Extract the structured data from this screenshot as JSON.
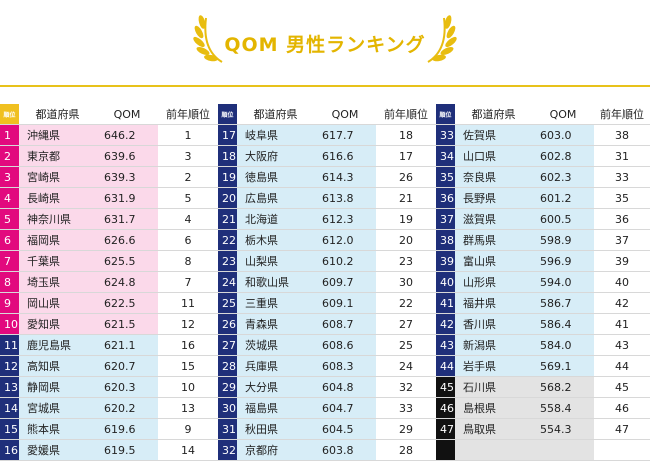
{
  "header": {
    "title": "QOM 男性ランキング"
  },
  "table": {
    "columns": {
      "rank": "順位",
      "pref": "都道府県",
      "qom": "QOM",
      "prev": "前年順位"
    }
  },
  "chart_data": {
    "type": "table",
    "columns": [
      "順位",
      "都道府県",
      "QOM",
      "前年順位"
    ],
    "rows": [
      {
        "rank": "1",
        "pref": "沖縄県",
        "qom": "646.2",
        "prev": "1",
        "group": "pink"
      },
      {
        "rank": "2",
        "pref": "東京都",
        "qom": "639.6",
        "prev": "3",
        "group": "pink"
      },
      {
        "rank": "3",
        "pref": "宮崎県",
        "qom": "639.3",
        "prev": "2",
        "group": "pink"
      },
      {
        "rank": "4",
        "pref": "長崎県",
        "qom": "631.9",
        "prev": "5",
        "group": "pink"
      },
      {
        "rank": "5",
        "pref": "神奈川県",
        "qom": "631.7",
        "prev": "4",
        "group": "pink"
      },
      {
        "rank": "6",
        "pref": "福岡県",
        "qom": "626.6",
        "prev": "6",
        "group": "pink"
      },
      {
        "rank": "7",
        "pref": "千葉県",
        "qom": "625.5",
        "prev": "8",
        "group": "pink"
      },
      {
        "rank": "8",
        "pref": "埼玉県",
        "qom": "624.8",
        "prev": "7",
        "group": "pink"
      },
      {
        "rank": "9",
        "pref": "岡山県",
        "qom": "622.5",
        "prev": "11",
        "group": "pink"
      },
      {
        "rank": "10",
        "pref": "愛知県",
        "qom": "621.5",
        "prev": "12",
        "group": "pink"
      },
      {
        "rank": "11",
        "pref": "鹿児島県",
        "qom": "621.1",
        "prev": "16",
        "group": "navy"
      },
      {
        "rank": "12",
        "pref": "高知県",
        "qom": "620.7",
        "prev": "15",
        "group": "navy"
      },
      {
        "rank": "13",
        "pref": "静岡県",
        "qom": "620.3",
        "prev": "10",
        "group": "navy"
      },
      {
        "rank": "14",
        "pref": "宮城県",
        "qom": "620.2",
        "prev": "13",
        "group": "navy"
      },
      {
        "rank": "15",
        "pref": "熊本県",
        "qom": "619.6",
        "prev": "9",
        "group": "navy"
      },
      {
        "rank": "16",
        "pref": "愛媛県",
        "qom": "619.5",
        "prev": "14",
        "group": "navy"
      },
      {
        "rank": "17",
        "pref": "岐阜県",
        "qom": "617.7",
        "prev": "18",
        "group": "navy"
      },
      {
        "rank": "18",
        "pref": "大阪府",
        "qom": "616.6",
        "prev": "17",
        "group": "navy"
      },
      {
        "rank": "19",
        "pref": "徳島県",
        "qom": "614.3",
        "prev": "26",
        "group": "navy"
      },
      {
        "rank": "20",
        "pref": "広島県",
        "qom": "613.8",
        "prev": "21",
        "group": "navy"
      },
      {
        "rank": "21",
        "pref": "北海道",
        "qom": "612.3",
        "prev": "19",
        "group": "navy"
      },
      {
        "rank": "22",
        "pref": "栃木県",
        "qom": "612.0",
        "prev": "20",
        "group": "navy"
      },
      {
        "rank": "23",
        "pref": "山梨県",
        "qom": "610.2",
        "prev": "23",
        "group": "navy"
      },
      {
        "rank": "24",
        "pref": "和歌山県",
        "qom": "609.7",
        "prev": "30",
        "group": "navy"
      },
      {
        "rank": "25",
        "pref": "三重県",
        "qom": "609.1",
        "prev": "22",
        "group": "navy"
      },
      {
        "rank": "26",
        "pref": "青森県",
        "qom": "608.7",
        "prev": "27",
        "group": "navy"
      },
      {
        "rank": "27",
        "pref": "茨城県",
        "qom": "608.6",
        "prev": "25",
        "group": "navy"
      },
      {
        "rank": "28",
        "pref": "兵庫県",
        "qom": "608.3",
        "prev": "24",
        "group": "navy"
      },
      {
        "rank": "29",
        "pref": "大分県",
        "qom": "604.8",
        "prev": "32",
        "group": "navy"
      },
      {
        "rank": "30",
        "pref": "福島県",
        "qom": "604.7",
        "prev": "33",
        "group": "navy"
      },
      {
        "rank": "31",
        "pref": "秋田県",
        "qom": "604.5",
        "prev": "29",
        "group": "navy"
      },
      {
        "rank": "32",
        "pref": "京都府",
        "qom": "603.8",
        "prev": "28",
        "group": "navy"
      },
      {
        "rank": "33",
        "pref": "佐賀県",
        "qom": "603.0",
        "prev": "38",
        "group": "navy"
      },
      {
        "rank": "34",
        "pref": "山口県",
        "qom": "602.8",
        "prev": "31",
        "group": "navy"
      },
      {
        "rank": "35",
        "pref": "奈良県",
        "qom": "602.3",
        "prev": "33",
        "group": "navy"
      },
      {
        "rank": "36",
        "pref": "長野県",
        "qom": "601.2",
        "prev": "35",
        "group": "navy"
      },
      {
        "rank": "37",
        "pref": "滋賀県",
        "qom": "600.5",
        "prev": "36",
        "group": "navy"
      },
      {
        "rank": "38",
        "pref": "群馬県",
        "qom": "598.9",
        "prev": "37",
        "group": "navy"
      },
      {
        "rank": "39",
        "pref": "富山県",
        "qom": "596.9",
        "prev": "39",
        "group": "navy"
      },
      {
        "rank": "40",
        "pref": "山形県",
        "qom": "594.0",
        "prev": "40",
        "group": "navy"
      },
      {
        "rank": "41",
        "pref": "福井県",
        "qom": "586.7",
        "prev": "42",
        "group": "navy"
      },
      {
        "rank": "42",
        "pref": "香川県",
        "qom": "586.4",
        "prev": "41",
        "group": "navy"
      },
      {
        "rank": "43",
        "pref": "新潟県",
        "qom": "584.0",
        "prev": "43",
        "group": "navy"
      },
      {
        "rank": "44",
        "pref": "岩手県",
        "qom": "569.1",
        "prev": "44",
        "group": "navy"
      },
      {
        "rank": "45",
        "pref": "石川県",
        "qom": "568.2",
        "prev": "45",
        "group": "black"
      },
      {
        "rank": "46",
        "pref": "島根県",
        "qom": "558.4",
        "prev": "46",
        "group": "black"
      },
      {
        "rank": "47",
        "pref": "鳥取県",
        "qom": "554.3",
        "prev": "47",
        "group": "black"
      }
    ]
  },
  "colors": {
    "title_gold": "#e3b500",
    "top10": "#e2097e",
    "top10_bg": "#fbd9ea",
    "middle": "#1f2f7a",
    "middle_bg": "#d7edf7",
    "bottom": "#111111",
    "bottom_bg": "#e3e3e3"
  }
}
